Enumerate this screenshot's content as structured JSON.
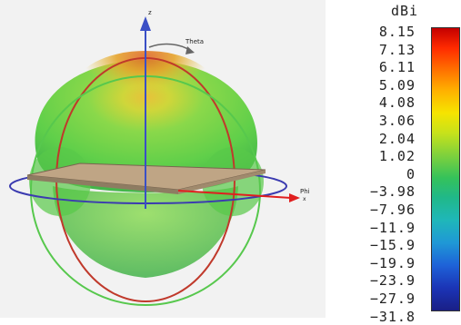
{
  "axes": {
    "z_label": "z",
    "theta_label": "Theta",
    "phi_label": "Phi",
    "x_label": "x"
  },
  "legend": {
    "unit": "dBi",
    "ticks": [
      "8.15",
      "7.13",
      "6.11",
      "5.09",
      "4.08",
      "3.06",
      "2.04",
      "1.02",
      "0",
      "−3.98",
      "−7.96",
      "−11.9",
      "−15.9",
      "−19.9",
      "−23.9",
      "−27.9",
      "−31.8"
    ]
  },
  "colors": {
    "pattern_green": "#6fd23f",
    "pattern_peak": "#e4a32a",
    "theta_ring": "#c0392b",
    "phi_ring": "#3b3bb0",
    "arrow_red": "#e01f1f",
    "arrow_blue": "#3a4fc6"
  }
}
